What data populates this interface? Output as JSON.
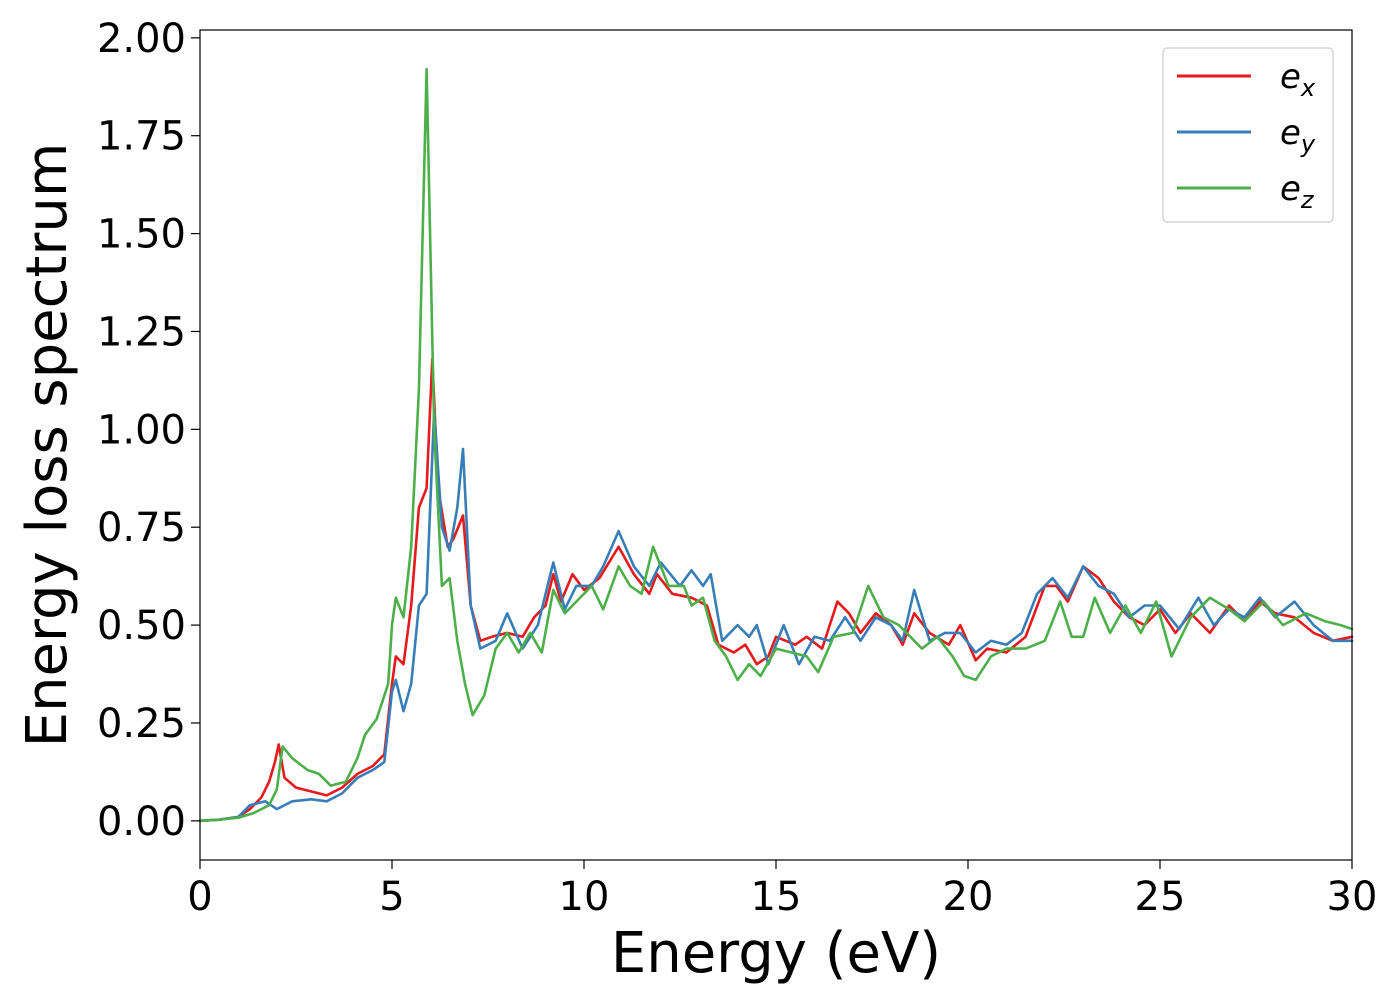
{
  "chart_data": {
    "type": "line",
    "title": "",
    "xlabel": "Energy (eV)",
    "ylabel": "Energy loss spectrum",
    "xlim": [
      0,
      30
    ],
    "ylim": [
      -0.1,
      2.02
    ],
    "x_ticks": [
      "0",
      "5",
      "10",
      "15",
      "20",
      "25",
      "30"
    ],
    "y_ticks": [
      "0.00",
      "0.25",
      "0.50",
      "0.75",
      "1.00",
      "1.25",
      "1.50",
      "1.75",
      "2.00"
    ],
    "grid": false,
    "legend_placement": "top-right",
    "series": [
      {
        "name": "e_x",
        "label_base": "e",
        "label_sub": "x",
        "color": "#e41a1c",
        "points": [
          [
            0,
            0
          ],
          [
            0.5,
            0.003
          ],
          [
            1.0,
            0.01
          ],
          [
            1.3,
            0.03
          ],
          [
            1.6,
            0.06
          ],
          [
            1.8,
            0.1
          ],
          [
            1.95,
            0.15
          ],
          [
            2.05,
            0.195
          ],
          [
            2.2,
            0.11
          ],
          [
            2.5,
            0.085
          ],
          [
            2.9,
            0.075
          ],
          [
            3.3,
            0.065
          ],
          [
            3.7,
            0.085
          ],
          [
            4.1,
            0.12
          ],
          [
            4.5,
            0.14
          ],
          [
            4.8,
            0.17
          ],
          [
            5.0,
            0.35
          ],
          [
            5.1,
            0.42
          ],
          [
            5.3,
            0.4
          ],
          [
            5.5,
            0.55
          ],
          [
            5.7,
            0.8
          ],
          [
            5.9,
            0.85
          ],
          [
            6.05,
            1.18
          ],
          [
            6.2,
            0.85
          ],
          [
            6.45,
            0.7
          ],
          [
            6.6,
            0.72
          ],
          [
            6.85,
            0.78
          ],
          [
            7.05,
            0.55
          ],
          [
            7.3,
            0.46
          ],
          [
            7.6,
            0.47
          ],
          [
            8.0,
            0.48
          ],
          [
            8.4,
            0.47
          ],
          [
            8.7,
            0.52
          ],
          [
            9.0,
            0.55
          ],
          [
            9.2,
            0.63
          ],
          [
            9.4,
            0.56
          ],
          [
            9.7,
            0.63
          ],
          [
            10.0,
            0.59
          ],
          [
            10.4,
            0.62
          ],
          [
            10.9,
            0.7
          ],
          [
            11.3,
            0.63
          ],
          [
            11.7,
            0.58
          ],
          [
            11.9,
            0.63
          ],
          [
            12.3,
            0.58
          ],
          [
            12.8,
            0.57
          ],
          [
            13.2,
            0.55
          ],
          [
            13.5,
            0.45
          ],
          [
            13.9,
            0.43
          ],
          [
            14.2,
            0.45
          ],
          [
            14.5,
            0.4
          ],
          [
            14.8,
            0.42
          ],
          [
            15.0,
            0.47
          ],
          [
            15.5,
            0.45
          ],
          [
            15.8,
            0.47
          ],
          [
            16.2,
            0.44
          ],
          [
            16.6,
            0.56
          ],
          [
            16.9,
            0.53
          ],
          [
            17.2,
            0.48
          ],
          [
            17.6,
            0.53
          ],
          [
            18.0,
            0.5
          ],
          [
            18.3,
            0.45
          ],
          [
            18.6,
            0.53
          ],
          [
            19.0,
            0.48
          ],
          [
            19.5,
            0.45
          ],
          [
            19.8,
            0.5
          ],
          [
            20.2,
            0.41
          ],
          [
            20.5,
            0.44
          ],
          [
            21.0,
            0.43
          ],
          [
            21.5,
            0.47
          ],
          [
            22.0,
            0.6
          ],
          [
            22.3,
            0.6
          ],
          [
            22.6,
            0.56
          ],
          [
            23.0,
            0.65
          ],
          [
            23.4,
            0.62
          ],
          [
            23.8,
            0.56
          ],
          [
            24.2,
            0.52
          ],
          [
            24.6,
            0.5
          ],
          [
            25.0,
            0.54
          ],
          [
            25.4,
            0.48
          ],
          [
            25.8,
            0.53
          ],
          [
            26.3,
            0.48
          ],
          [
            26.8,
            0.55
          ],
          [
            27.2,
            0.51
          ],
          [
            27.6,
            0.56
          ],
          [
            28.0,
            0.53
          ],
          [
            28.5,
            0.52
          ],
          [
            29.0,
            0.48
          ],
          [
            29.5,
            0.46
          ],
          [
            30,
            0.47
          ]
        ]
      },
      {
        "name": "e_y",
        "label_base": "e",
        "label_sub": "y",
        "color": "#377eb8",
        "points": [
          [
            0,
            0
          ],
          [
            0.5,
            0.003
          ],
          [
            1.0,
            0.01
          ],
          [
            1.3,
            0.04
          ],
          [
            1.7,
            0.05
          ],
          [
            2.0,
            0.03
          ],
          [
            2.4,
            0.05
          ],
          [
            2.9,
            0.055
          ],
          [
            3.3,
            0.05
          ],
          [
            3.7,
            0.07
          ],
          [
            4.1,
            0.11
          ],
          [
            4.5,
            0.13
          ],
          [
            4.8,
            0.15
          ],
          [
            5.0,
            0.33
          ],
          [
            5.1,
            0.36
          ],
          [
            5.3,
            0.28
          ],
          [
            5.5,
            0.35
          ],
          [
            5.7,
            0.55
          ],
          [
            5.9,
            0.58
          ],
          [
            6.1,
            1.05
          ],
          [
            6.3,
            0.75
          ],
          [
            6.5,
            0.69
          ],
          [
            6.7,
            0.8
          ],
          [
            6.85,
            0.95
          ],
          [
            7.05,
            0.55
          ],
          [
            7.3,
            0.44
          ],
          [
            7.7,
            0.46
          ],
          [
            8.0,
            0.53
          ],
          [
            8.4,
            0.44
          ],
          [
            8.8,
            0.5
          ],
          [
            9.2,
            0.66
          ],
          [
            9.5,
            0.54
          ],
          [
            9.8,
            0.6
          ],
          [
            10.2,
            0.6
          ],
          [
            10.5,
            0.65
          ],
          [
            10.9,
            0.74
          ],
          [
            11.3,
            0.65
          ],
          [
            11.7,
            0.6
          ],
          [
            12.0,
            0.66
          ],
          [
            12.5,
            0.6
          ],
          [
            12.8,
            0.64
          ],
          [
            13.1,
            0.6
          ],
          [
            13.3,
            0.63
          ],
          [
            13.6,
            0.46
          ],
          [
            14.0,
            0.5
          ],
          [
            14.3,
            0.47
          ],
          [
            14.5,
            0.5
          ],
          [
            14.8,
            0.4
          ],
          [
            15.2,
            0.5
          ],
          [
            15.6,
            0.4
          ],
          [
            16.0,
            0.47
          ],
          [
            16.4,
            0.46
          ],
          [
            16.8,
            0.52
          ],
          [
            17.2,
            0.46
          ],
          [
            17.6,
            0.52
          ],
          [
            18.0,
            0.5
          ],
          [
            18.3,
            0.46
          ],
          [
            18.6,
            0.59
          ],
          [
            19.0,
            0.46
          ],
          [
            19.4,
            0.48
          ],
          [
            19.8,
            0.48
          ],
          [
            20.2,
            0.43
          ],
          [
            20.6,
            0.46
          ],
          [
            21.0,
            0.45
          ],
          [
            21.4,
            0.48
          ],
          [
            21.8,
            0.58
          ],
          [
            22.2,
            0.62
          ],
          [
            22.6,
            0.57
          ],
          [
            23.0,
            0.65
          ],
          [
            23.4,
            0.6
          ],
          [
            23.8,
            0.58
          ],
          [
            24.2,
            0.52
          ],
          [
            24.6,
            0.55
          ],
          [
            25.0,
            0.55
          ],
          [
            25.5,
            0.49
          ],
          [
            26.0,
            0.57
          ],
          [
            26.4,
            0.5
          ],
          [
            26.8,
            0.54
          ],
          [
            27.2,
            0.52
          ],
          [
            27.6,
            0.57
          ],
          [
            28.0,
            0.52
          ],
          [
            28.5,
            0.56
          ],
          [
            29.0,
            0.5
          ],
          [
            29.5,
            0.46
          ],
          [
            30,
            0.46
          ]
        ]
      },
      {
        "name": "e_z",
        "label_base": "e",
        "label_sub": "z",
        "color": "#4daf4a",
        "points": [
          [
            0,
            0
          ],
          [
            0.5,
            0.003
          ],
          [
            1.0,
            0.008
          ],
          [
            1.4,
            0.02
          ],
          [
            1.8,
            0.04
          ],
          [
            2.0,
            0.08
          ],
          [
            2.15,
            0.19
          ],
          [
            2.4,
            0.16
          ],
          [
            2.8,
            0.13
          ],
          [
            3.1,
            0.12
          ],
          [
            3.4,
            0.09
          ],
          [
            3.8,
            0.1
          ],
          [
            4.1,
            0.16
          ],
          [
            4.3,
            0.22
          ],
          [
            4.6,
            0.26
          ],
          [
            4.9,
            0.35
          ],
          [
            5.0,
            0.5
          ],
          [
            5.1,
            0.57
          ],
          [
            5.3,
            0.52
          ],
          [
            5.5,
            0.7
          ],
          [
            5.7,
            1.1
          ],
          [
            5.9,
            1.92
          ],
          [
            6.1,
            1.0
          ],
          [
            6.3,
            0.6
          ],
          [
            6.5,
            0.62
          ],
          [
            6.7,
            0.46
          ],
          [
            6.9,
            0.35
          ],
          [
            7.1,
            0.27
          ],
          [
            7.4,
            0.32
          ],
          [
            7.7,
            0.44
          ],
          [
            8.0,
            0.48
          ],
          [
            8.3,
            0.43
          ],
          [
            8.6,
            0.48
          ],
          [
            8.9,
            0.43
          ],
          [
            9.2,
            0.59
          ],
          [
            9.5,
            0.53
          ],
          [
            9.8,
            0.56
          ],
          [
            10.2,
            0.6
          ],
          [
            10.5,
            0.54
          ],
          [
            10.9,
            0.65
          ],
          [
            11.2,
            0.6
          ],
          [
            11.5,
            0.58
          ],
          [
            11.8,
            0.7
          ],
          [
            12.2,
            0.6
          ],
          [
            12.6,
            0.6
          ],
          [
            12.8,
            0.55
          ],
          [
            13.1,
            0.57
          ],
          [
            13.4,
            0.46
          ],
          [
            13.7,
            0.42
          ],
          [
            14.0,
            0.36
          ],
          [
            14.3,
            0.4
          ],
          [
            14.6,
            0.37
          ],
          [
            15.0,
            0.44
          ],
          [
            15.4,
            0.43
          ],
          [
            15.8,
            0.42
          ],
          [
            16.1,
            0.38
          ],
          [
            16.5,
            0.47
          ],
          [
            17.0,
            0.48
          ],
          [
            17.4,
            0.6
          ],
          [
            17.8,
            0.52
          ],
          [
            18.2,
            0.5
          ],
          [
            18.5,
            0.47
          ],
          [
            18.8,
            0.44
          ],
          [
            19.2,
            0.47
          ],
          [
            19.6,
            0.42
          ],
          [
            19.9,
            0.37
          ],
          [
            20.2,
            0.36
          ],
          [
            20.6,
            0.42
          ],
          [
            21.0,
            0.44
          ],
          [
            21.5,
            0.44
          ],
          [
            22.0,
            0.46
          ],
          [
            22.4,
            0.56
          ],
          [
            22.7,
            0.47
          ],
          [
            23.0,
            0.47
          ],
          [
            23.3,
            0.57
          ],
          [
            23.7,
            0.48
          ],
          [
            24.1,
            0.55
          ],
          [
            24.5,
            0.48
          ],
          [
            24.9,
            0.56
          ],
          [
            25.3,
            0.42
          ],
          [
            25.8,
            0.52
          ],
          [
            26.3,
            0.57
          ],
          [
            26.8,
            0.54
          ],
          [
            27.2,
            0.51
          ],
          [
            27.7,
            0.56
          ],
          [
            28.2,
            0.5
          ],
          [
            28.8,
            0.53
          ],
          [
            29.3,
            0.51
          ],
          [
            29.7,
            0.5
          ],
          [
            30,
            0.49
          ]
        ]
      }
    ]
  }
}
